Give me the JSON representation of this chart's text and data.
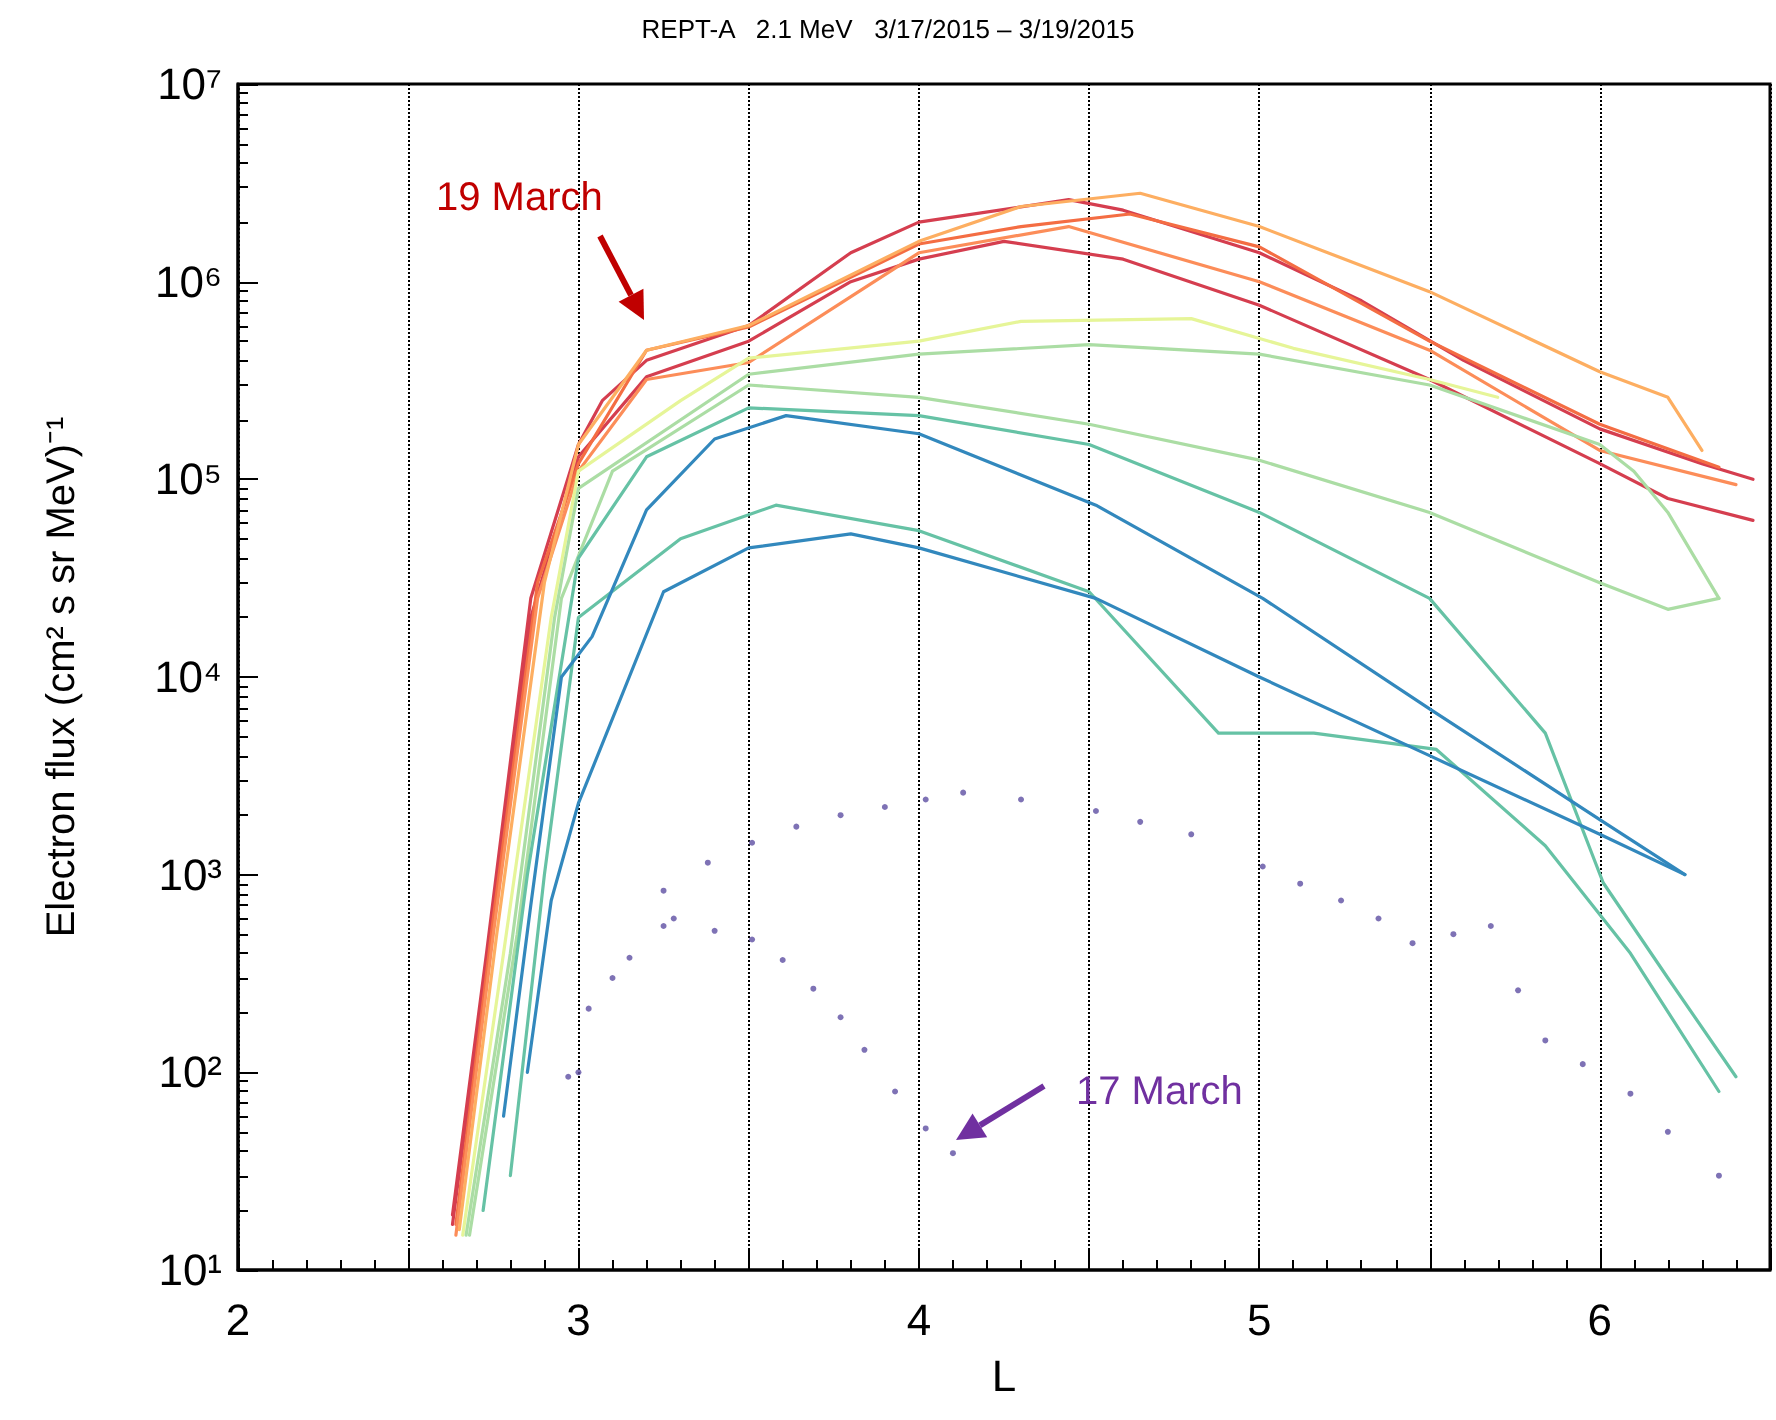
{
  "chart_data": {
    "type": "line",
    "title": "REPT-A   2.1 MeV   3/17/2015 – 3/19/2015",
    "xlabel": "L",
    "ylabel": "Electron flux (cm² s sr MeV)⁻¹",
    "xlim": [
      2,
      6.5
    ],
    "xticks": [
      2,
      {
        "value": 2.5,
        "label": null
      },
      3,
      {
        "value": 3.5,
        "label": null
      },
      4,
      {
        "value": 4.5,
        "label": null
      },
      5,
      {
        "value": 5.5,
        "label": null
      },
      6,
      {
        "value": 6.5,
        "label": null
      }
    ],
    "ylim": [
      10,
      10000000
    ],
    "log": "y",
    "yticks": [
      {
        "value": 10,
        "label": "10¹"
      },
      {
        "value": 100,
        "label": "10²"
      },
      {
        "value": 1000,
        "label": "10³"
      },
      {
        "value": 10000,
        "label": "10⁴"
      },
      {
        "value": 100000,
        "label": "10⁵"
      },
      {
        "value": 1000000,
        "label": "10⁶"
      },
      {
        "value": 10000000,
        "label": "10⁷"
      }
    ],
    "grid": "x",
    "marker": "none",
    "line_style": "solid",
    "annotations": [
      "19 March",
      "17 March"
    ],
    "series": [
      {
        "color": "#d53e4f",
        "x": [
          2.63,
          2.73,
          2.86,
          3.0,
          3.07,
          3.2,
          3.5,
          3.8,
          4.0,
          4.44,
          4.6,
          5.0,
          5.3,
          5.6,
          6.0,
          6.3,
          6.45
        ],
        "values": [
          19,
          400,
          25000,
          150000,
          250000,
          400000,
          600000,
          1400000,
          2000000,
          2600000,
          2300000,
          1400000,
          800000,
          400000,
          180000,
          120000,
          100000
        ]
      },
      {
        "color": "#d53e4f",
        "x": [
          2.63,
          2.73,
          2.86,
          3.0,
          3.2,
          3.5,
          3.8,
          4.0,
          4.25,
          4.6,
          5.0,
          5.5,
          6.0,
          6.2,
          6.45
        ],
        "values": [
          17,
          350,
          20000,
          130000,
          330000,
          500000,
          1000000,
          1300000,
          1600000,
          1300000,
          760000,
          320000,
          120000,
          80000,
          62000
        ]
      },
      {
        "color": "#f46d43",
        "x": [
          2.64,
          2.75,
          2.88,
          3.0,
          3.2,
          3.5,
          4.0,
          4.3,
          4.62,
          5.0,
          5.5,
          6.0,
          6.35
        ],
        "values": [
          17,
          600,
          30000,
          120000,
          450000,
          590000,
          1550000,
          1900000,
          2200000,
          1500000,
          500000,
          190000,
          115000
        ]
      },
      {
        "color": "#fc8d59",
        "x": [
          2.64,
          2.75,
          2.88,
          3.0,
          3.2,
          3.5,
          4.0,
          4.44,
          5.0,
          5.5,
          6.0,
          6.4
        ],
        "values": [
          15,
          500,
          25000,
          110000,
          320000,
          390000,
          1400000,
          1900000,
          1000000,
          450000,
          140000,
          94000
        ]
      },
      {
        "color": "#fdae61",
        "x": [
          2.65,
          2.76,
          2.9,
          3.0,
          3.2,
          3.5,
          4.0,
          4.3,
          4.65,
          5.0,
          5.5,
          6.0,
          6.2,
          6.3
        ],
        "values": [
          16,
          500,
          30000,
          150000,
          450000,
          600000,
          1600000,
          2400000,
          2800000,
          1900000,
          890000,
          350000,
          260000,
          140000
        ]
      },
      {
        "color": "#e6f598",
        "x": [
          2.66,
          2.78,
          2.92,
          3.0,
          3.3,
          3.5,
          4.0,
          4.3,
          4.8,
          5.1,
          5.5,
          5.7
        ],
        "values": [
          15,
          400,
          20000,
          110000,
          250000,
          410000,
          500000,
          630000,
          650000,
          460000,
          320000,
          260000
        ]
      },
      {
        "color": "#abdda4",
        "x": [
          2.67,
          2.8,
          2.93,
          3.0,
          3.5,
          4.0,
          4.5,
          5.0,
          5.5,
          6.0,
          6.1,
          6.2,
          6.35
        ],
        "values": [
          15,
          400,
          20000,
          90000,
          340000,
          430000,
          480000,
          430000,
          300000,
          150000,
          110000,
          68000,
          25000
        ]
      },
      {
        "color": "#abdda4",
        "x": [
          2.68,
          2.82,
          2.95,
          3.1,
          3.5,
          4.0,
          4.5,
          5.0,
          5.5,
          6.0,
          6.2,
          6.35
        ],
        "values": [
          15,
          500,
          25000,
          110000,
          300000,
          260000,
          190000,
          125000,
          68000,
          30000,
          22000,
          25000
        ]
      },
      {
        "color": "#66c2a5",
        "x": [
          2.72,
          2.85,
          3.0,
          3.2,
          3.5,
          4.0,
          4.5,
          5.0,
          5.5,
          5.84,
          6.01,
          6.2,
          6.4
        ],
        "values": [
          20,
          1000,
          40000,
          130000,
          230000,
          210000,
          150000,
          68000,
          25000,
          5200,
          910,
          300,
          95
        ]
      },
      {
        "color": "#66c2a5",
        "x": [
          2.8,
          2.9,
          3.0,
          3.3,
          3.58,
          4.0,
          4.5,
          4.88,
          5.16,
          5.52,
          5.84,
          6.09,
          6.35
        ],
        "values": [
          30,
          1000,
          20000,
          50000,
          74000,
          55000,
          27000,
          5200,
          5200,
          4300,
          1400,
          400,
          80
        ]
      },
      {
        "color": "#3288bd",
        "x": [
          2.78,
          2.86,
          2.95,
          3.04,
          3.2,
          3.4,
          3.61,
          4.0,
          4.52,
          5.01,
          5.5,
          6.0,
          6.25
        ],
        "values": [
          60,
          700,
          10000,
          16000,
          70000,
          160000,
          210000,
          170000,
          74000,
          25000,
          6900,
          1900,
          1000
        ]
      },
      {
        "color": "#3288bd",
        "x": [
          2.85,
          2.92,
          3.0,
          3.25,
          3.5,
          3.8,
          4.0,
          4.52,
          5.0,
          5.5,
          6.0,
          6.25
        ],
        "values": [
          100,
          740,
          2300,
          27000,
          45000,
          53000,
          45000,
          25000,
          10000,
          4000,
          1600,
          1000
        ]
      },
      {
        "type": "scatter",
        "color": "#5e4fa2",
        "x": [
          2.97,
          3.03,
          3.15,
          3.25,
          3.28,
          3.4,
          3.51,
          3.6,
          3.69,
          3.77,
          3.84,
          3.93,
          4.02,
          4.1
        ],
        "values": [
          95,
          210,
          380,
          550,
          600,
          520,
          470,
          370,
          265,
          190,
          130,
          80,
          52,
          39
        ]
      },
      {
        "type": "scatter",
        "color": "#5e4fa2",
        "x": [
          3.0,
          3.1,
          3.25,
          3.38,
          3.51,
          3.64,
          3.77,
          3.9,
          4.02,
          4.13,
          4.3,
          4.52,
          4.65,
          4.8,
          5.01,
          5.12,
          5.24,
          5.35,
          5.45,
          5.57,
          5.68,
          5.76,
          5.84,
          5.95,
          6.09,
          6.2,
          6.35
        ],
        "values": [
          100,
          300,
          830,
          1150,
          1450,
          1750,
          2000,
          2200,
          2400,
          2600,
          2400,
          2100,
          1850,
          1600,
          1100,
          900,
          740,
          600,
          450,
          500,
          550,
          260,
          145,
          110,
          78,
          50,
          30
        ]
      }
    ]
  }
}
